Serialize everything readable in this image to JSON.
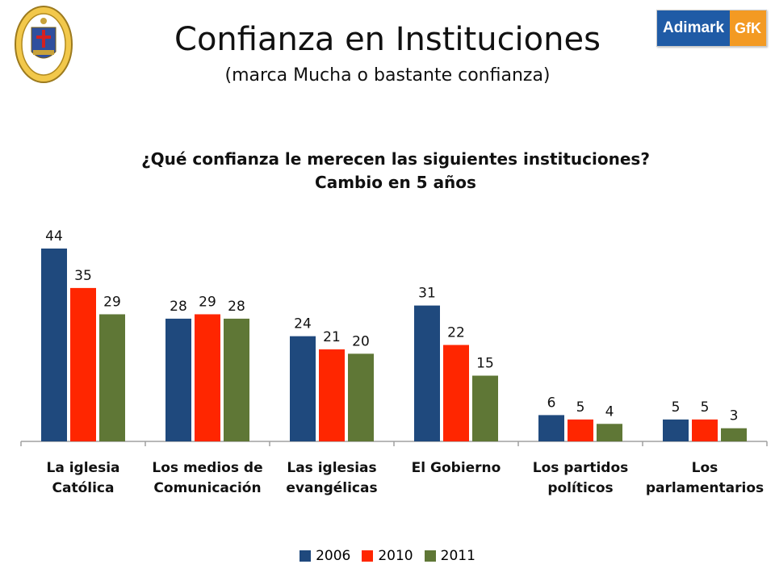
{
  "header": {
    "title": "Confianza en Instituciones",
    "subtitle": "(marca Mucha o bastante confianza)",
    "brand_left": "Adimark",
    "brand_right": "GfK"
  },
  "colors": {
    "s2006": "#1f497d",
    "s2010": "#ff2600",
    "s2011": "#5f7736",
    "axis": "#a0a0a0"
  },
  "chart_data": {
    "type": "bar",
    "title": "¿Qué confianza le merecen las siguientes instituciones?",
    "subtitle": "Cambio en 5 años",
    "categories": [
      [
        "La iglesia",
        "Católica"
      ],
      [
        "Los medios de",
        "Comunicación"
      ],
      [
        "Las iglesias",
        "evangélicas"
      ],
      [
        "El Gobierno"
      ],
      [
        "Los partidos",
        "políticos"
      ],
      [
        "Los",
        "parlamentarios"
      ]
    ],
    "series": [
      {
        "name": "2006",
        "color": "#1f497d",
        "values": [
          44,
          28,
          24,
          31,
          6,
          5
        ]
      },
      {
        "name": "2010",
        "color": "#ff2600",
        "values": [
          35,
          29,
          21,
          22,
          5,
          5
        ]
      },
      {
        "name": "2011",
        "color": "#5f7736",
        "values": [
          29,
          28,
          20,
          15,
          4,
          3
        ]
      }
    ],
    "ylim": [
      0,
      44
    ],
    "grid": false,
    "legend": "bottom"
  }
}
